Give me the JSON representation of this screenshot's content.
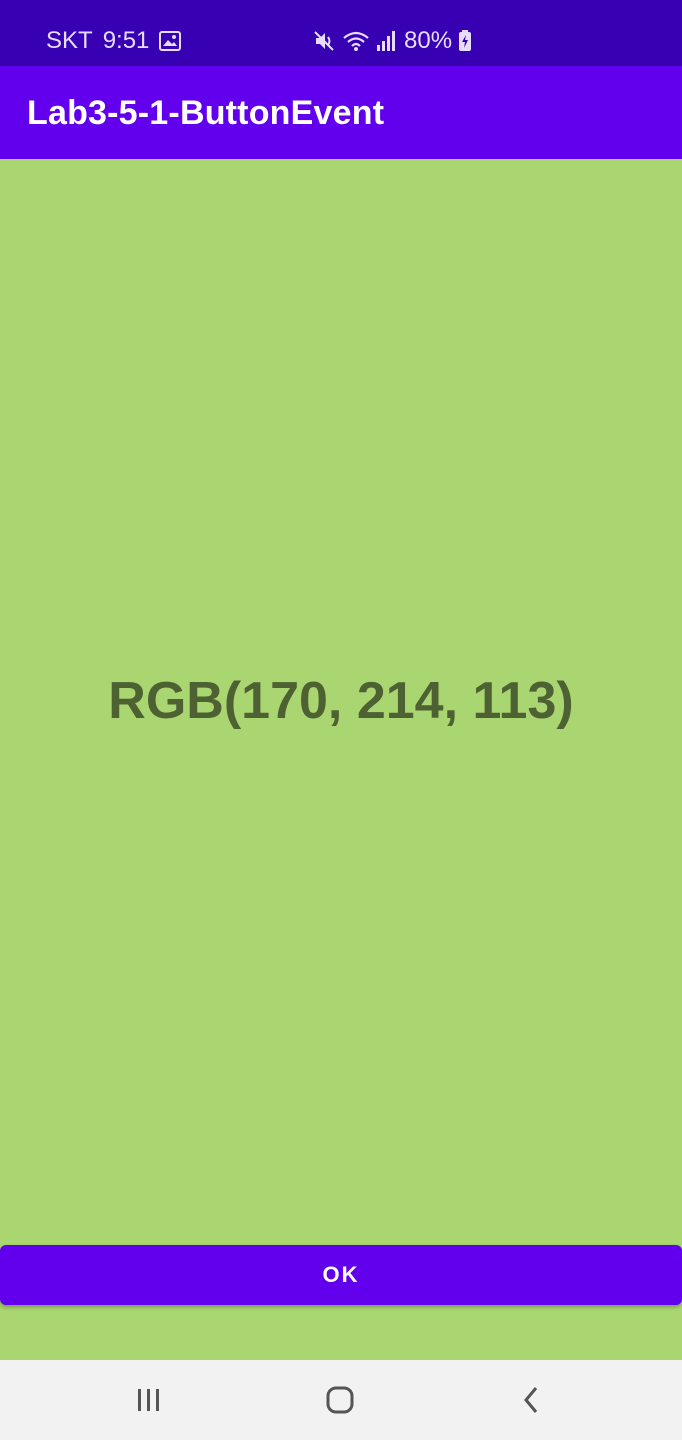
{
  "status_bar": {
    "carrier": "SKT",
    "time": "9:51",
    "battery": "80%",
    "icons": [
      "gallery-icon",
      "mute-icon",
      "wifi-icon",
      "signal-icon",
      "battery-charging-icon"
    ]
  },
  "app_bar": {
    "title": "Lab3-5-1-ButtonEvent"
  },
  "main": {
    "rgb_label": "RGB(170, 214, 113)",
    "background_color": "#aad671"
  },
  "ok_button": {
    "label": "OK"
  },
  "nav_bar": {
    "buttons": [
      "recent-apps-icon",
      "home-icon",
      "back-icon"
    ]
  },
  "colors": {
    "status_bar": "#3700b3",
    "app_bar": "#6200ee",
    "button": "#6200ee",
    "text_dark": "#4d6133"
  }
}
